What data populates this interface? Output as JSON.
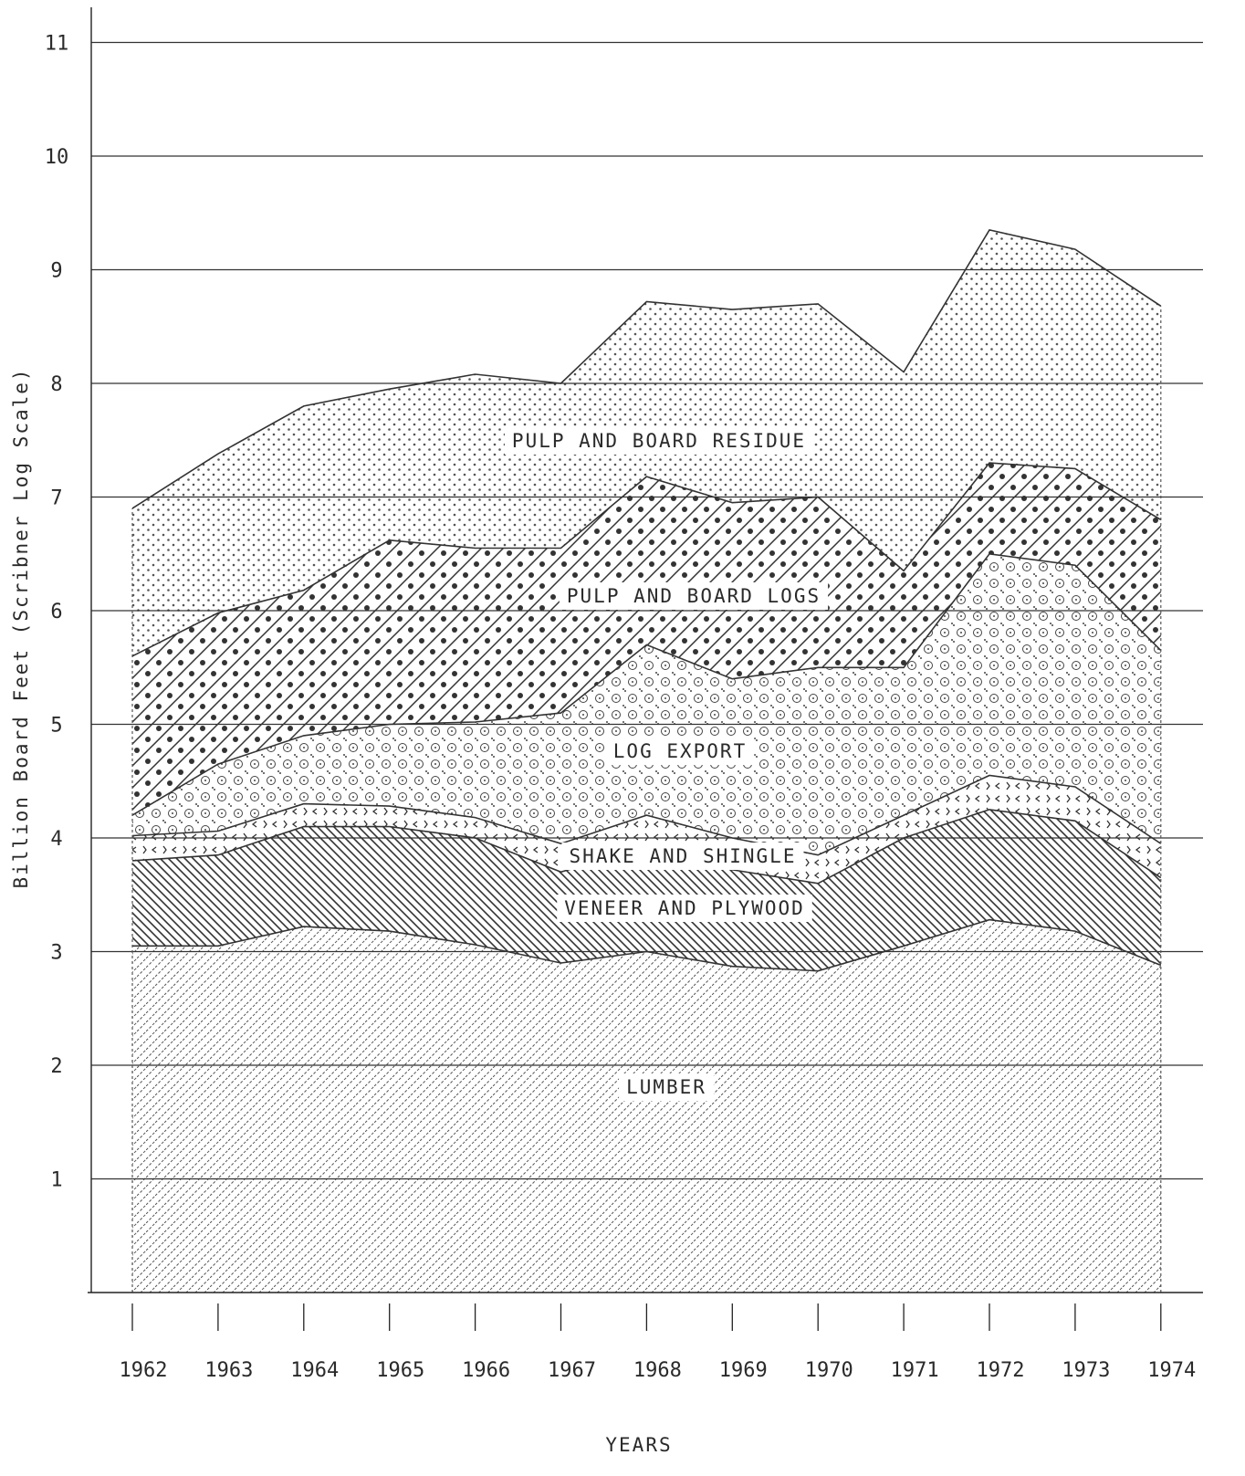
{
  "chart_data": {
    "type": "area",
    "title": "",
    "xlabel": "YEARS",
    "ylabel": "Billion Board Feet (Scribner Log Scale)",
    "ylim": [
      0,
      11
    ],
    "y_ticks": [
      "1",
      "2",
      "3",
      "4",
      "5",
      "6",
      "7",
      "8",
      "9",
      "10",
      "11"
    ],
    "x_ticks": [
      "1962",
      "1963",
      "1964",
      "1965",
      "1966",
      "1967",
      "1968",
      "1969",
      "1970",
      "1971",
      "1972",
      "1973",
      "1974"
    ],
    "grid": "horizontal",
    "stacked": true,
    "x": [
      1962,
      1963,
      1964,
      1965,
      1966,
      1967,
      1968,
      1969,
      1970,
      1971,
      1972,
      1973,
      1974
    ],
    "series": [
      {
        "name": "LUMBER",
        "pattern": "fine-hatch",
        "cumulative": [
          3.05,
          3.05,
          3.22,
          3.18,
          3.06,
          2.9,
          3.0,
          2.87,
          2.83,
          3.05,
          3.28,
          3.18,
          2.88
        ]
      },
      {
        "name": "VENEER AND PLYWOOD",
        "pattern": "diagonal-lines",
        "cumulative": [
          3.8,
          3.85,
          4.1,
          4.1,
          4.0,
          3.7,
          3.92,
          3.72,
          3.6,
          4.0,
          4.25,
          4.15,
          3.65
        ]
      },
      {
        "name": "SHAKE AND SHINGLE",
        "pattern": "chevrons",
        "cumulative": [
          4.02,
          4.06,
          4.3,
          4.28,
          4.18,
          3.95,
          4.2,
          4.0,
          3.85,
          4.2,
          4.55,
          4.45,
          3.95
        ]
      },
      {
        "name": "LOG EXPORT",
        "pattern": "rings",
        "cumulative": [
          4.2,
          4.65,
          4.9,
          5.0,
          5.02,
          5.1,
          5.7,
          5.4,
          5.5,
          5.5,
          6.5,
          6.4,
          5.65
        ]
      },
      {
        "name": "PULP AND BOARD LOGS",
        "pattern": "dots-and-hatch",
        "cumulative": [
          5.6,
          5.98,
          6.18,
          6.62,
          6.55,
          6.55,
          7.18,
          6.95,
          7.0,
          6.35,
          7.3,
          7.25,
          6.8
        ]
      },
      {
        "name": "PULP AND BOARD RESIDUE",
        "pattern": "stipple",
        "cumulative": [
          6.9,
          7.38,
          7.8,
          7.95,
          8.08,
          8.0,
          8.72,
          8.65,
          8.7,
          8.1,
          9.35,
          9.18,
          8.68
        ]
      }
    ]
  }
}
